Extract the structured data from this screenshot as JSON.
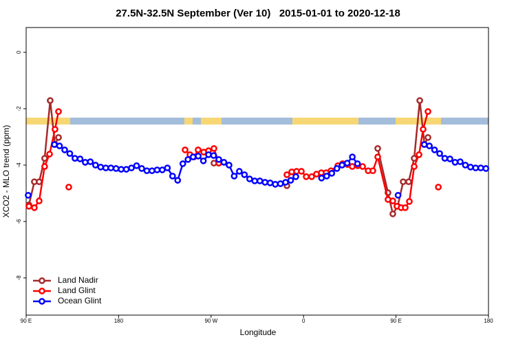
{
  "chart_data": {
    "type": "line",
    "title": "27.5N-32.5N September (Ver 10)   2015-01-01 to 2020-12-18",
    "x_label": "Longitude",
    "y_label": "XCO2 - MLO trend (ppm)",
    "xlim": [
      90,
      540
    ],
    "ylim": [
      -9.32,
      0.88
    ],
    "xticks": [
      {
        "value": 90,
        "label": "90 E"
      },
      {
        "value": 180,
        "label": "180"
      },
      {
        "value": 270,
        "label": "90 W"
      },
      {
        "value": 360,
        "label": "0"
      },
      {
        "value": 450,
        "label": "90 E"
      },
      {
        "value": 540,
        "label": "180"
      }
    ],
    "yticks": [
      0,
      -2,
      -4,
      -6,
      -8
    ],
    "legend": "bottom-left",
    "series": [
      {
        "name": "Land Nadir",
        "color": "#a52a2a",
        "x": [
          92.7,
          98,
          102.7,
          108,
          113.4,
          118.1,
          121.5,
          200,
          272.8,
          277.5,
          300,
          343.8,
          400,
          432.2,
          442.2,
          446.9,
          451.6,
          457,
          462.3,
          467.7,
          473.1,
          477.7,
          481.1
        ],
        "values": [
          -5.41,
          -4.59,
          -4.59,
          -3.76,
          -1.71,
          -3.27,
          -3.02,
          null,
          -3.93,
          -3.93,
          null,
          -4.73,
          null,
          -3.41,
          -4.98,
          -5.73,
          -5.46,
          -4.59,
          -4.59,
          -3.76,
          -1.71,
          -3.27,
          -3.02
        ]
      },
      {
        "name": "Land Glint",
        "color": "#ff0000",
        "x": [
          92.7,
          98,
          102.7,
          108,
          112.8,
          118.1,
          121.5,
          126,
          131.5,
          190,
          244.7,
          249.4,
          253.4,
          257.4,
          262.8,
          267.5,
          272.8,
          277.5,
          310,
          343.8,
          348.5,
          353.2,
          357.9,
          362.6,
          367.9,
          372.6,
          377.3,
          382,
          386.7,
          393.4,
          398,
          402.7,
          407.4,
          412.8,
          417.5,
          422.9,
          427.5,
          432.2,
          442.2,
          446.9,
          450.9,
          455,
          459,
          463,
          467.7,
          472.4,
          476.4,
          481.1,
          486,
          491.2
        ],
        "values": [
          -5.46,
          -5.51,
          -5.27,
          -4.05,
          -3.61,
          -2.73,
          -2.1,
          null,
          -4.78,
          null,
          -3.46,
          -3.63,
          -3.71,
          -3.46,
          -3.54,
          -3.49,
          -3.41,
          -3.93,
          null,
          -4.34,
          -4.24,
          -4.22,
          -4.22,
          -4.41,
          -4.41,
          -4.32,
          -4.27,
          -4.27,
          -4.2,
          -4.02,
          -3.95,
          -3.98,
          -4.05,
          -4.02,
          -4.05,
          -4.2,
          -4.2,
          -3.71,
          -5.22,
          -5.27,
          -5.46,
          -5.51,
          -5.51,
          -5.29,
          -4.05,
          -3.63,
          -2.73,
          -2.1,
          null,
          -4.78
        ]
      },
      {
        "name": "Ocean Glint",
        "color": "#0000ff",
        "x": [
          92,
          97,
          117.5,
          122.5,
          127.5,
          132.5,
          137.5,
          142.5,
          147.5,
          152.5,
          157.5,
          162.5,
          167.5,
          172.5,
          177.5,
          182.5,
          187.5,
          192.5,
          197.5,
          202.5,
          207.5,
          212.5,
          217.5,
          222.5,
          227.5,
          232.5,
          237.5,
          242.5,
          247.5,
          252.5,
          257.5,
          262.5,
          267.5,
          272.5,
          277.5,
          282.5,
          287.5,
          292.5,
          297.5,
          302.5,
          307.5,
          312.5,
          317.5,
          322.5,
          327.5,
          332.5,
          337.5,
          342.5,
          347.5,
          352.5,
          357.5,
          377.5,
          382.5,
          387.5,
          392.5,
          397.5,
          402.5,
          407.5,
          412.5,
          417.5,
          452,
          457,
          477.5,
          482.5,
          487.5,
          492.5,
          497.5,
          502.5,
          507.5,
          512.5,
          517.5,
          522.5,
          527.5,
          532.5,
          537.5
        ],
        "values": [
          -5.07,
          null,
          -3.27,
          -3.32,
          -3.46,
          -3.59,
          -3.76,
          -3.78,
          -3.9,
          -3.88,
          -4.0,
          -4.07,
          -4.1,
          -4.1,
          -4.12,
          -4.15,
          -4.15,
          -4.1,
          -4.02,
          -4.12,
          -4.2,
          -4.2,
          -4.17,
          -4.17,
          -4.1,
          -4.39,
          -4.54,
          -3.95,
          -3.8,
          -3.71,
          -3.68,
          -3.85,
          -3.63,
          -3.66,
          -3.8,
          -3.9,
          -4.0,
          -4.39,
          -4.22,
          -4.34,
          -4.49,
          -4.56,
          -4.56,
          -4.61,
          -4.63,
          -4.68,
          -4.66,
          -4.61,
          -4.54,
          -4.41,
          null,
          -4.46,
          -4.39,
          -4.29,
          -4.12,
          -4.0,
          -3.93,
          -3.71,
          -3.95,
          null,
          -5.07,
          null,
          -3.27,
          -3.32,
          -3.46,
          -3.59,
          -3.76,
          -3.78,
          -3.9,
          -3.88,
          -4.0,
          -4.07,
          -4.1,
          -4.1,
          -4.12
        ]
      }
    ]
  }
}
